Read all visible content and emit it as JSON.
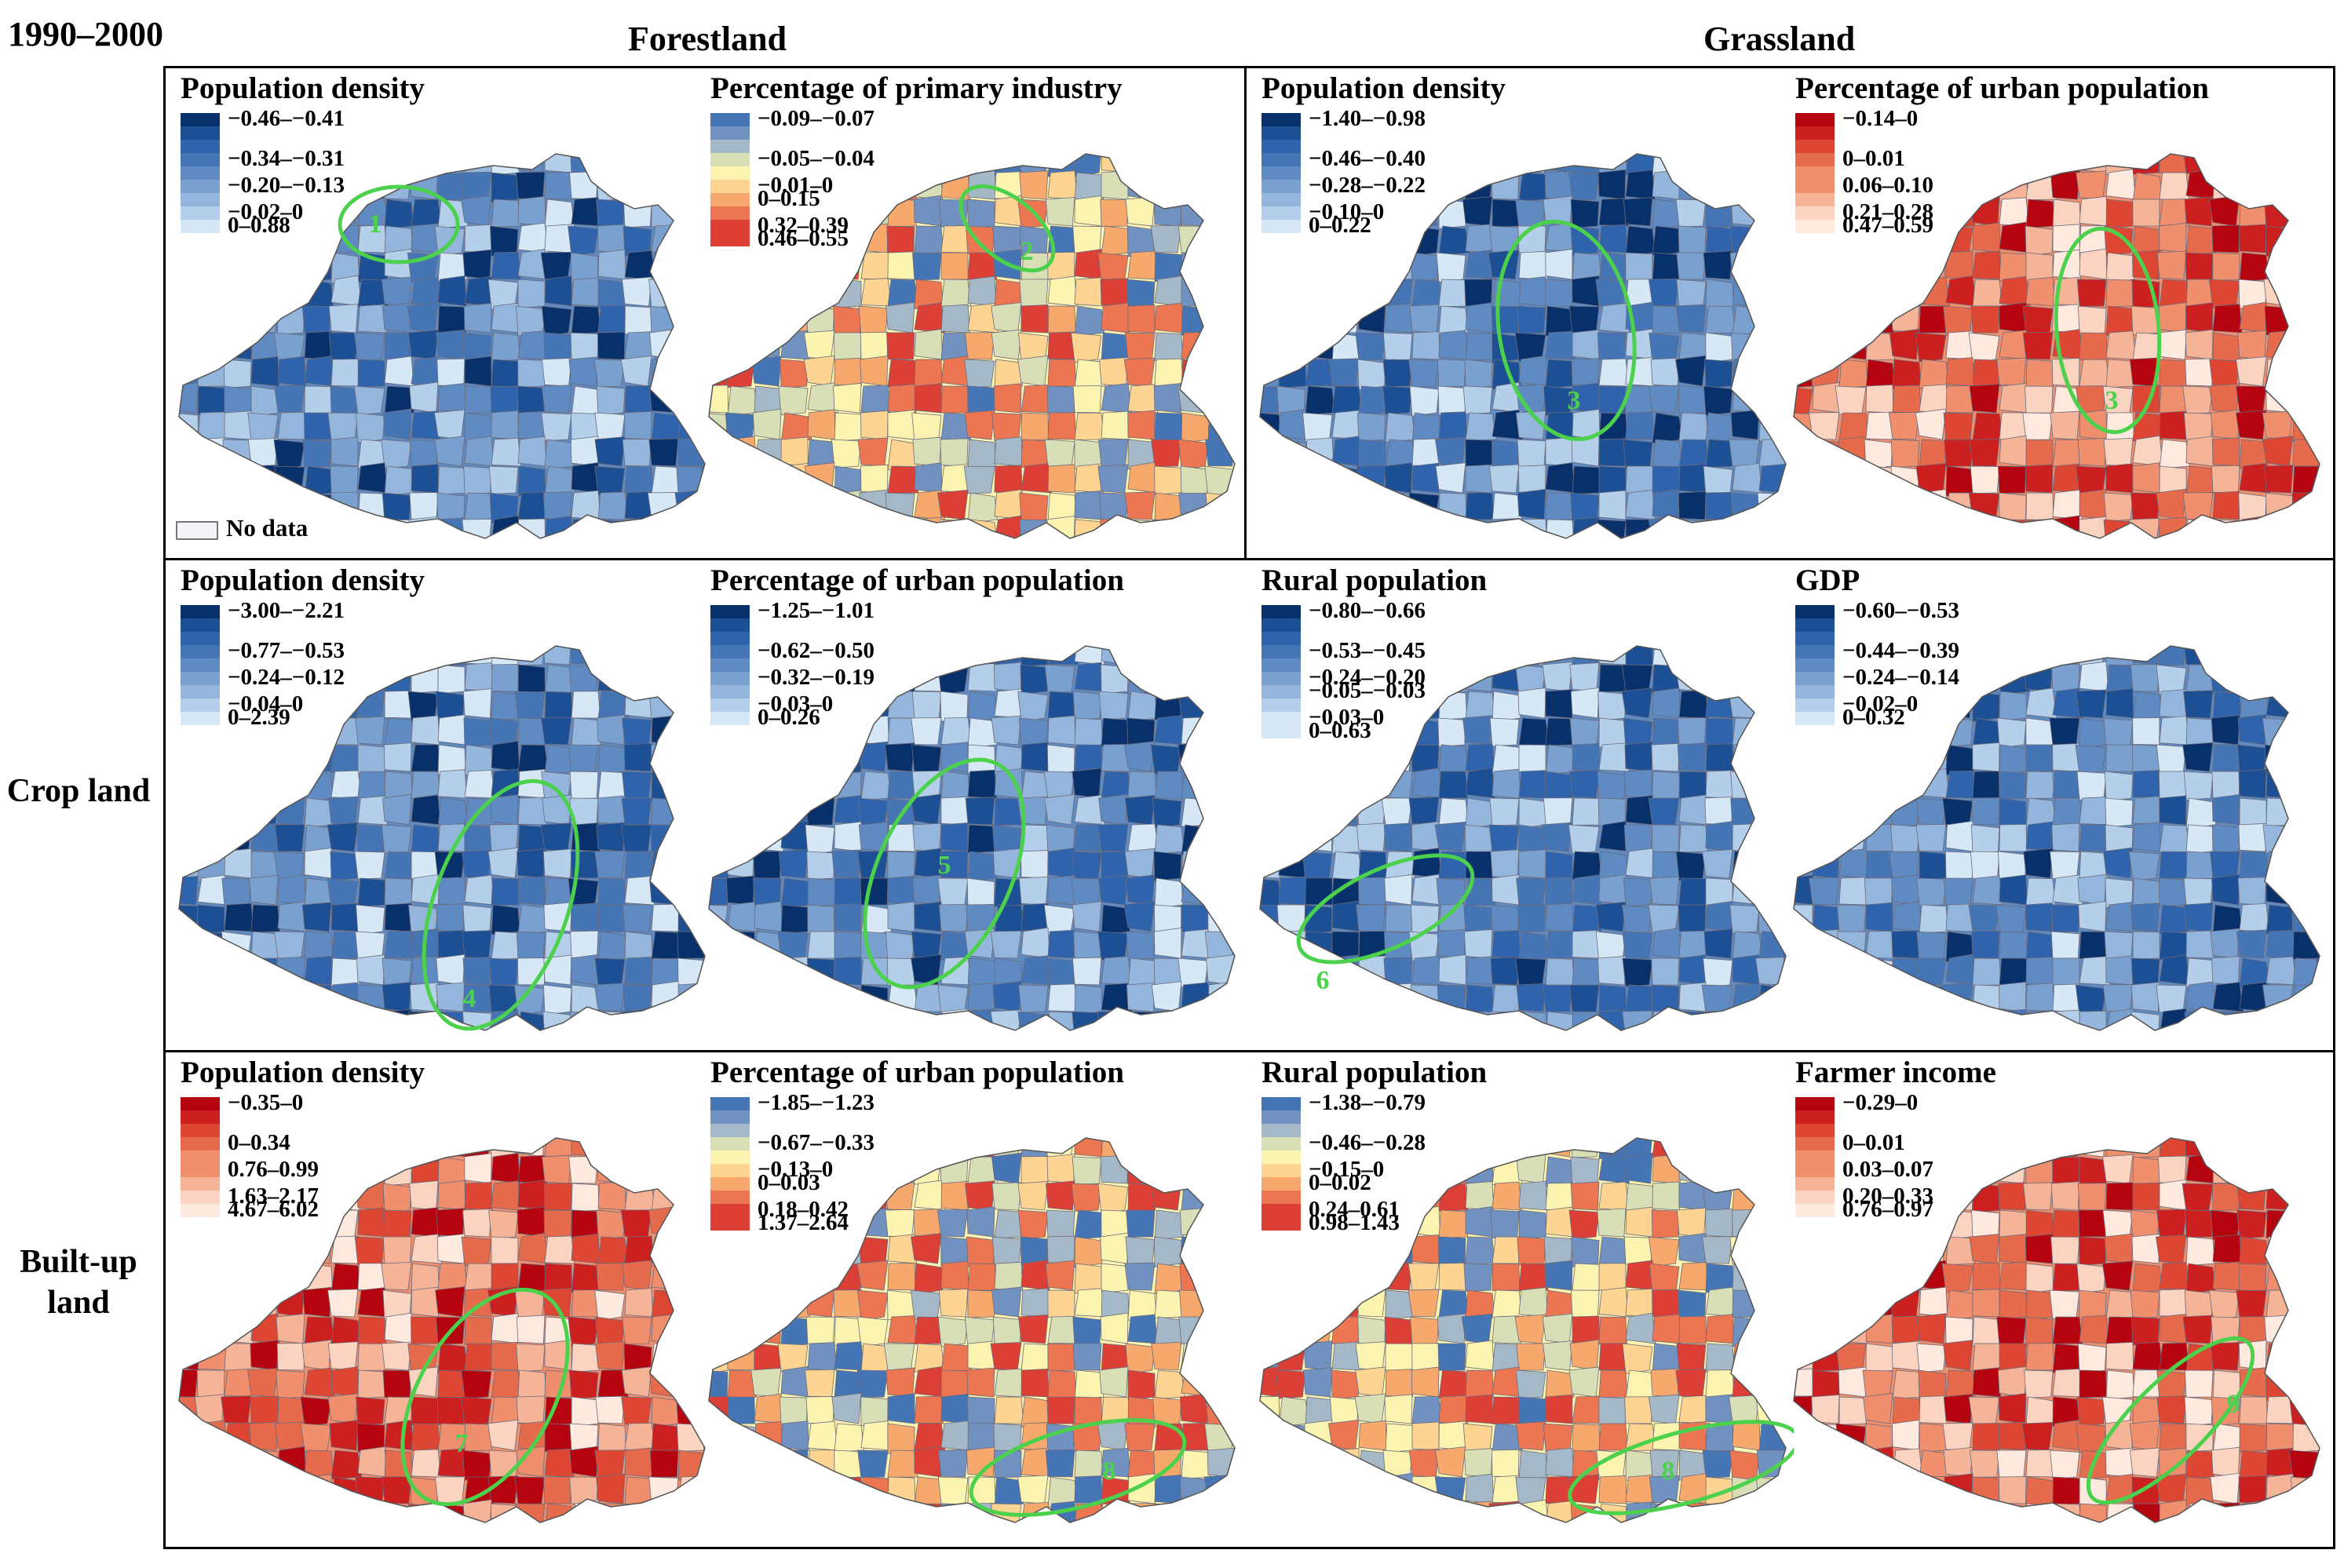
{
  "period": "1990–2000",
  "column_headers": [
    "Forestland",
    "Grassland"
  ],
  "row_labels": [
    "Crop land",
    "Built-up land"
  ],
  "no_data_label": "No data",
  "colors": {
    "frame": "#000000",
    "circle": "#4cd14c",
    "blue_scale": [
      "#08306b",
      "#1c4f93",
      "#2f63ab",
      "#4575b4",
      "#5f8ac2",
      "#7aa0cf",
      "#95b6dc",
      "#b4cfe9",
      "#d6e8f6"
    ],
    "red_scale": [
      "#b5040f",
      "#cc1f20",
      "#dc4633",
      "#e66a4c",
      "#ef8f6e",
      "#f5b398",
      "#fad4c1",
      "#fde9de"
    ],
    "diverging": [
      "#4575b4",
      "#7192c0",
      "#a5b8c7",
      "#d8dfb6",
      "#fbf3b0",
      "#fdd491",
      "#f6a86d",
      "#ec7652",
      "#dc3f36"
    ]
  },
  "panels": [
    {
      "title": "Population density",
      "scheme": "blue",
      "legend": [
        "−0.46–−0.41",
        "−0.34–−0.31",
        "−0.20–−0.13",
        "−0.02–0",
        "0–0.88"
      ],
      "circle_label": "1"
    },
    {
      "title": "Percentage of primary industry",
      "scheme": "diverging",
      "legend": [
        "−0.09–−0.07",
        "−0.05–−0.04",
        "−0.01–0",
        "0–0.15",
        "0.32–0.39",
        "0.46–0.55"
      ],
      "circle_label": "2"
    },
    {
      "title": "Population density",
      "scheme": "blue",
      "legend": [
        "−1.40–−0.98",
        "−0.46–−0.40",
        "−0.28–−0.22",
        "−0.10–0",
        "0–0.22"
      ],
      "circle_label": "3"
    },
    {
      "title": "Percentage of urban population",
      "scheme": "red",
      "legend": [
        "−0.14–0",
        "0–0.01",
        "0.06–0.10",
        "0.21–0.28",
        "0.47–0.59"
      ],
      "circle_label": "3"
    },
    {
      "title": "Population density",
      "scheme": "blue",
      "legend": [
        "−3.00–−2.21",
        "−0.77–−0.53",
        "−0.24–−0.12",
        "−0.04–0",
        "0–2.39"
      ],
      "circle_label": "4"
    },
    {
      "title": "Percentage of urban population",
      "scheme": "blue",
      "legend": [
        "−1.25–−1.01",
        "−0.62–−0.50",
        "−0.32–−0.19",
        "−0.03–0",
        "0–0.26"
      ],
      "circle_label": "5"
    },
    {
      "title": "Rural population",
      "scheme": "blue",
      "legend": [
        "−0.80–−0.66",
        "−0.53–−0.45",
        "−0.24–−0.20",
        "−0.05–−0.03",
        "−0.03–0",
        "0–0.63"
      ],
      "circle_label": "6"
    },
    {
      "title": "GDP",
      "scheme": "blue",
      "legend": [
        "−0.60–−0.53",
        "−0.44–−0.39",
        "−0.24–−0.14",
        "−0.02–0",
        "0–0.32"
      ],
      "circle_label": ""
    },
    {
      "title": "Population density",
      "scheme": "red",
      "legend": [
        "−0.35–0",
        "0–0.34",
        "0.76–0.99",
        "1.63–2.17",
        "4.67–6.02"
      ],
      "circle_label": "7"
    },
    {
      "title": "Percentage of urban population",
      "scheme": "diverging",
      "legend": [
        "−1.85–−1.23",
        "−0.67–−0.33",
        "−0.13–0",
        "0–0.03",
        "0.18–0.42",
        "1.37–2.64"
      ],
      "circle_label": "8"
    },
    {
      "title": "Rural population",
      "scheme": "diverging",
      "legend": [
        "−1.38–−0.79",
        "−0.46–−0.28",
        "−0.15–0",
        "0–0.02",
        "0.24–0.61",
        "0.98–1.43"
      ],
      "circle_label": "8"
    },
    {
      "title": "Farmer income",
      "scheme": "red",
      "legend": [
        "−0.29–0",
        "0–0.01",
        "0.03–0.07",
        "0.20–0.33",
        "0.76–0.97"
      ],
      "circle_label": "9"
    }
  ]
}
